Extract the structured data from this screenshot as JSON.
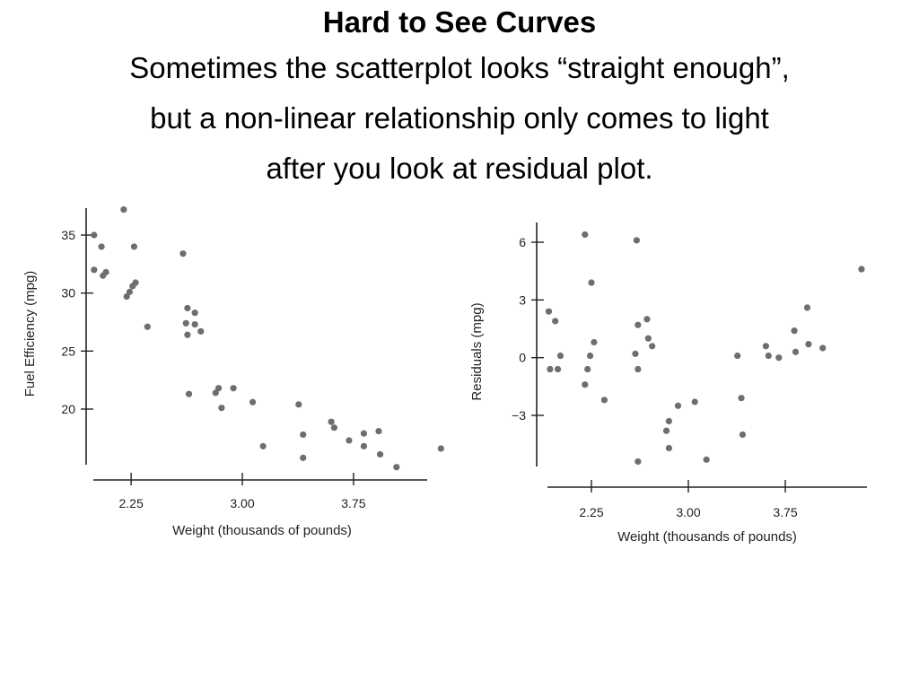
{
  "slide": {
    "title": "Hard to See Curves",
    "subtitle_lines": [
      "Sometimes the scatterplot looks “straight enough”,",
      "but a non-linear relationship only comes to light",
      "after you look at residual plot."
    ]
  },
  "chart_data": [
    {
      "type": "scatter",
      "title": "",
      "xlabel": "Weight (thousands of pounds)",
      "ylabel": "Fuel Efficiency (mpg)",
      "xticks": [
        "2.25",
        "3.00",
        "3.75"
      ],
      "yticks": [
        "20",
        "25",
        "30",
        "35"
      ],
      "xlim": [
        1.8,
        4.5
      ],
      "ylim": [
        15,
        36
      ],
      "grid": false,
      "point_color": "#6e6e6e",
      "points": [
        [
          2.0,
          35.0
        ],
        [
          2.05,
          34.0
        ],
        [
          2.0,
          32.0
        ],
        [
          2.06,
          31.5
        ],
        [
          2.08,
          31.8
        ],
        [
          2.2,
          37.2
        ],
        [
          2.27,
          34.0
        ],
        [
          2.22,
          29.7
        ],
        [
          2.24,
          30.1
        ],
        [
          2.26,
          30.6
        ],
        [
          2.28,
          30.9
        ],
        [
          2.36,
          27.1
        ],
        [
          2.6,
          33.4
        ],
        [
          2.63,
          28.7
        ],
        [
          2.68,
          28.3
        ],
        [
          2.62,
          27.4
        ],
        [
          2.68,
          27.3
        ],
        [
          2.72,
          26.7
        ],
        [
          2.63,
          26.4
        ],
        [
          2.64,
          21.3
        ],
        [
          2.84,
          21.8
        ],
        [
          2.94,
          21.8
        ],
        [
          2.82,
          21.4
        ],
        [
          2.86,
          20.1
        ],
        [
          3.07,
          20.6
        ],
        [
          3.14,
          16.8
        ],
        [
          3.38,
          20.4
        ],
        [
          3.41,
          17.8
        ],
        [
          3.41,
          15.8
        ],
        [
          3.6,
          18.9
        ],
        [
          3.62,
          18.4
        ],
        [
          3.72,
          17.3
        ],
        [
          3.82,
          17.9
        ],
        [
          3.82,
          16.8
        ],
        [
          3.92,
          18.1
        ],
        [
          3.93,
          16.1
        ],
        [
          4.04,
          15.0
        ],
        [
          4.34,
          16.6
        ]
      ]
    },
    {
      "type": "scatter",
      "title": "",
      "xlabel": "Weight (thousands of pounds)",
      "ylabel": "Residuals (mpg)",
      "xticks": [
        "2.25",
        "3.00",
        "3.75"
      ],
      "yticks": [
        "−3",
        "0",
        "3",
        "6"
      ],
      "xlim": [
        1.8,
        4.5
      ],
      "ylim": [
        -6,
        7
      ],
      "grid": false,
      "point_color": "#6e6e6e",
      "points": [
        [
          1.92,
          2.4
        ],
        [
          1.97,
          1.9
        ],
        [
          1.93,
          -0.6
        ],
        [
          1.99,
          -0.6
        ],
        [
          2.01,
          0.1
        ],
        [
          2.2,
          6.4
        ],
        [
          2.25,
          3.9
        ],
        [
          2.27,
          0.8
        ],
        [
          2.24,
          0.1
        ],
        [
          2.22,
          -0.6
        ],
        [
          2.2,
          -1.4
        ],
        [
          2.35,
          -2.2
        ],
        [
          2.6,
          6.1
        ],
        [
          2.61,
          1.7
        ],
        [
          2.68,
          2.0
        ],
        [
          2.69,
          1.0
        ],
        [
          2.72,
          0.6
        ],
        [
          2.59,
          0.2
        ],
        [
          2.61,
          -0.6
        ],
        [
          2.61,
          -5.4
        ],
        [
          2.85,
          -3.3
        ],
        [
          2.83,
          -3.8
        ],
        [
          2.85,
          -4.7
        ],
        [
          2.92,
          -2.5
        ],
        [
          3.05,
          -2.3
        ],
        [
          3.14,
          -5.3
        ],
        [
          3.38,
          0.1
        ],
        [
          3.41,
          -2.1
        ],
        [
          3.42,
          -4.0
        ],
        [
          3.6,
          0.6
        ],
        [
          3.62,
          0.1
        ],
        [
          3.7,
          0.0
        ],
        [
          3.82,
          1.4
        ],
        [
          3.83,
          0.3
        ],
        [
          3.92,
          2.6
        ],
        [
          3.93,
          0.7
        ],
        [
          4.04,
          0.5
        ],
        [
          4.34,
          4.6
        ]
      ]
    }
  ]
}
